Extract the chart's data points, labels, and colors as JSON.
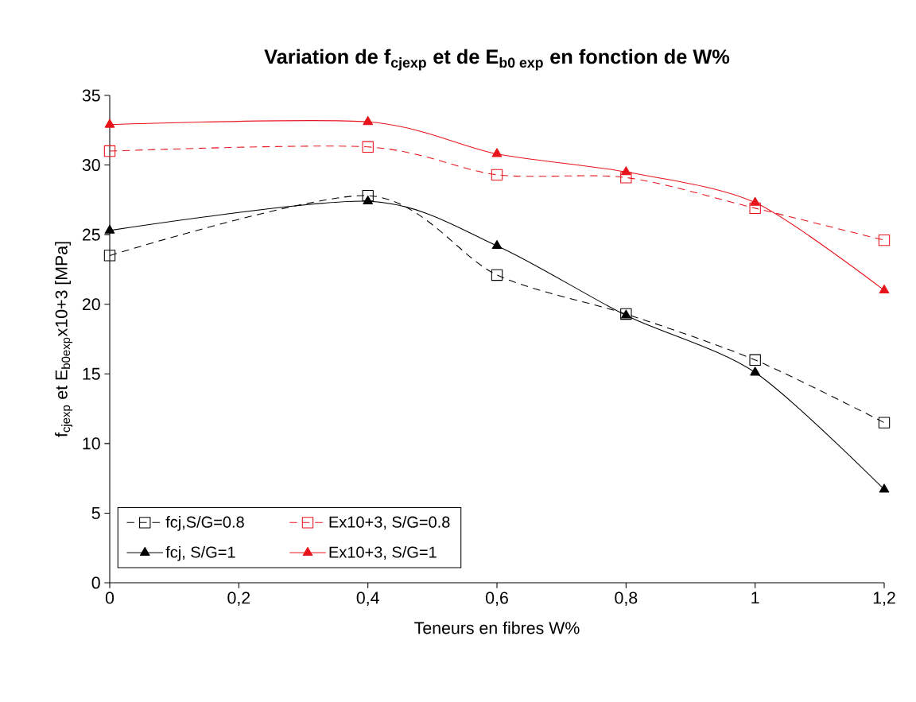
{
  "chart_data": {
    "type": "line",
    "title": "\\text{Variation de f}_{\\text{cjexp}}\\text{ et de E}_{\\text{b0 exp}}\\text{ en fonction de W\\%}",
    "xlabel": "Teneurs en fibres W%",
    "ylabel": "f$_{cjexp}$ et E$_{b0exp}$x10+3 [MPa]",
    "x": [
      0,
      0.4,
      0.6,
      0.8,
      1,
      1.2
    ],
    "series": [
      {
        "name": "fcj,S/G=0.8",
        "color": "#000000",
        "marker": "square",
        "line_style": "dashed",
        "values": [
          23.5,
          27.8,
          22.1,
          19.3,
          16.0,
          11.5
        ]
      },
      {
        "name": "Ex10+3, S/G=0.8",
        "color": "#e8141b",
        "marker": "square",
        "line_style": "dashed",
        "values": [
          31.0,
          31.3,
          29.3,
          29.1,
          26.9,
          24.6
        ]
      },
      {
        "name": "fcj, S/G=1",
        "color": "#000000",
        "marker": "triangle",
        "line_style": "solid",
        "values": [
          25.3,
          27.4,
          24.2,
          19.2,
          15.1,
          6.7
        ]
      },
      {
        "name": "Ex10+3, S/G=1",
        "color": "#e8141b",
        "marker": "triangle",
        "line_style": "solid",
        "values": [
          32.9,
          33.1,
          30.8,
          29.5,
          27.3,
          21.0
        ]
      }
    ],
    "xlim": [
      0,
      1.2
    ],
    "ylim": [
      0,
      35
    ],
    "xticks": [
      0,
      {
        "value": 0.2,
        "label": "0,2"
      },
      {
        "value": 0.4,
        "label": "0,4"
      },
      {
        "value": 0.6,
        "label": "0,6"
      },
      {
        "value": 0.8,
        "label": "0,8"
      },
      1,
      {
        "value": 1.2,
        "label": "1,2"
      }
    ],
    "yticks": [
      0,
      5,
      10,
      15,
      20,
      25,
      30,
      35
    ],
    "legend": "bottom left",
    "grid": false
  }
}
